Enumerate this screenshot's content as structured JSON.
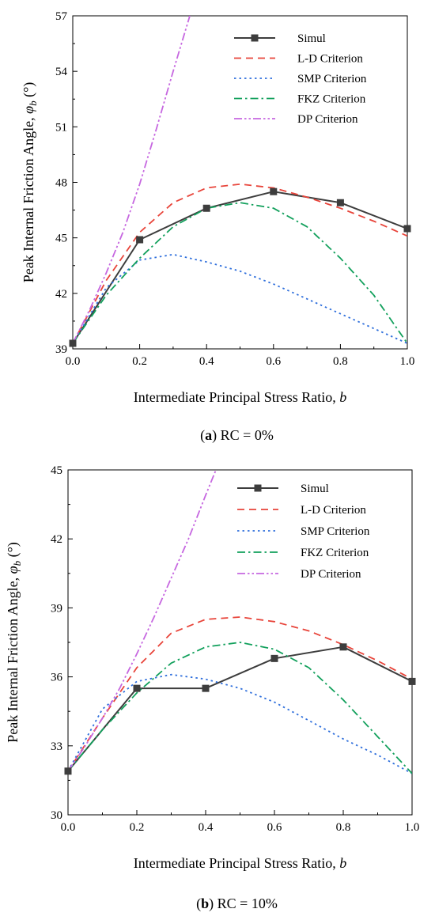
{
  "chart_data": [
    {
      "type": "line",
      "caption_prefix": "(",
      "caption_letter": "a",
      "caption_suffix": ") RC = 0%",
      "xlabel": "Intermediate Principal Stress Ratio, b",
      "ylabel": "Peak Internal Friction Angle, φb (°)",
      "xlim": [
        0.0,
        1.0
      ],
      "ylim": [
        39,
        57
      ],
      "xticks": [
        "0.0",
        "0.2",
        "0.4",
        "0.6",
        "0.8",
        "1.0"
      ],
      "yticks": [
        "39",
        "42",
        "45",
        "48",
        "51",
        "54",
        "57"
      ],
      "legend_position": "top-right",
      "series": [
        {
          "name": "Simul",
          "color": "#3d3d3d",
          "style": "solid-marker",
          "x": [
            0.0,
            0.2,
            0.4,
            0.6,
            0.8,
            1.0
          ],
          "y": [
            39.3,
            44.9,
            46.6,
            47.5,
            46.9,
            45.5
          ]
        },
        {
          "name": "L-D Criterion",
          "color": "#e8443a",
          "style": "dash",
          "x": [
            0.0,
            0.1,
            0.2,
            0.3,
            0.4,
            0.5,
            0.6,
            0.7,
            0.8,
            0.9,
            1.0
          ],
          "y": [
            39.3,
            42.7,
            45.3,
            46.9,
            47.7,
            47.9,
            47.7,
            47.2,
            46.6,
            45.9,
            45.1
          ]
        },
        {
          "name": "SMP Criterion",
          "color": "#2f6fdc",
          "style": "dot",
          "x": [
            0.0,
            0.1,
            0.2,
            0.3,
            0.4,
            0.5,
            0.6,
            0.7,
            0.8,
            0.9,
            1.0
          ],
          "y": [
            39.3,
            42.3,
            43.8,
            44.1,
            43.7,
            43.2,
            42.5,
            41.7,
            40.9,
            40.1,
            39.3
          ]
        },
        {
          "name": "FKZ Criterion",
          "color": "#12a05c",
          "style": "dashdot",
          "x": [
            0.0,
            0.1,
            0.2,
            0.3,
            0.4,
            0.5,
            0.6,
            0.7,
            0.8,
            0.9,
            1.0
          ],
          "y": [
            39.3,
            41.9,
            43.9,
            45.6,
            46.6,
            46.9,
            46.6,
            45.6,
            43.9,
            41.9,
            39.3
          ]
        },
        {
          "name": "DP Criterion",
          "color": "#c667e0",
          "style": "dashdotdot",
          "x": [
            0.0,
            0.05,
            0.1,
            0.15,
            0.2,
            0.25,
            0.3,
            0.35
          ],
          "y": [
            39.3,
            41.1,
            43.1,
            45.3,
            47.9,
            50.9,
            54.0,
            57.0
          ]
        }
      ]
    },
    {
      "type": "line",
      "caption_prefix": "(",
      "caption_letter": "b",
      "caption_suffix": ") RC = 10%",
      "xlabel": "Intermediate Principal Stress Ratio, b",
      "ylabel": "Peak Internal Friction Angle, φb (°)",
      "xlim": [
        0.0,
        1.0
      ],
      "ylim": [
        30,
        45
      ],
      "xticks": [
        "0.0",
        "0.2",
        "0.4",
        "0.6",
        "0.8",
        "1.0"
      ],
      "yticks": [
        "30",
        "33",
        "36",
        "39",
        "42",
        "45"
      ],
      "legend_position": "top-right",
      "series": [
        {
          "name": "Simul",
          "color": "#3d3d3d",
          "style": "solid-marker",
          "x": [
            0.0,
            0.2,
            0.4,
            0.6,
            0.8,
            1.0
          ],
          "y": [
            31.9,
            35.5,
            35.5,
            36.8,
            37.3,
            35.8
          ]
        },
        {
          "name": "L-D Criterion",
          "color": "#e8443a",
          "style": "dash",
          "x": [
            0.0,
            0.1,
            0.2,
            0.3,
            0.4,
            0.5,
            0.6,
            0.7,
            0.8,
            0.9,
            1.0
          ],
          "y": [
            31.9,
            34.2,
            36.4,
            37.9,
            38.5,
            38.6,
            38.4,
            38.0,
            37.4,
            36.7,
            35.9
          ]
        },
        {
          "name": "SMP Criterion",
          "color": "#2f6fdc",
          "style": "dot",
          "x": [
            0.0,
            0.1,
            0.2,
            0.3,
            0.4,
            0.5,
            0.6,
            0.7,
            0.8,
            0.9,
            1.0
          ],
          "y": [
            31.9,
            34.6,
            35.8,
            36.1,
            35.9,
            35.5,
            34.9,
            34.1,
            33.3,
            32.6,
            31.8
          ]
        },
        {
          "name": "FKZ Criterion",
          "color": "#12a05c",
          "style": "dashdot",
          "x": [
            0.0,
            0.1,
            0.2,
            0.3,
            0.4,
            0.5,
            0.6,
            0.7,
            0.8,
            0.9,
            1.0
          ],
          "y": [
            31.9,
            33.7,
            35.3,
            36.6,
            37.3,
            37.5,
            37.2,
            36.4,
            35.0,
            33.4,
            31.8
          ]
        },
        {
          "name": "DP Criterion",
          "color": "#c667e0",
          "style": "dashdotdot",
          "x": [
            0.0,
            0.05,
            0.1,
            0.15,
            0.2,
            0.25,
            0.3,
            0.35,
            0.4,
            0.43
          ],
          "y": [
            31.9,
            33.0,
            34.2,
            35.5,
            37.0,
            38.6,
            40.3,
            42.0,
            43.9,
            45.0
          ]
        }
      ]
    }
  ]
}
